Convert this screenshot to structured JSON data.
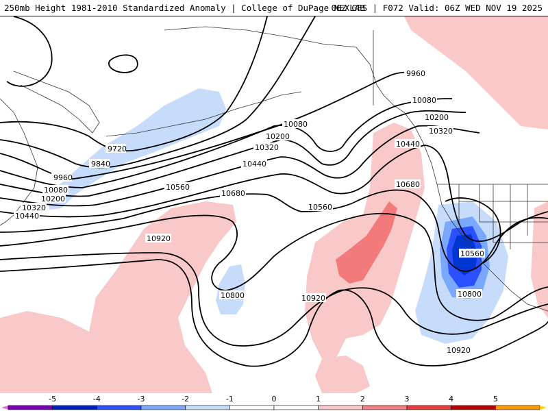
{
  "header": {
    "title": "250mb Height 1981-2010 Standardized Anomaly | College of DuPage NEXLAB",
    "run_info": "06Z GFS | F072 Valid: 06Z WED NOV 19 2025"
  },
  "contour_labels": {
    "l9720": "9720",
    "l9840": "9840",
    "l9960a": "9960",
    "l9960b": "9960",
    "l10080a": "10080",
    "l10080b": "10080",
    "l10080c": "10080",
    "l10200a": "10200",
    "l10200b": "10200",
    "l10200c": "10200",
    "l10320a": "10320",
    "l10320b": "10320",
    "l10320c": "10320",
    "l10440a": "10440",
    "l10440b": "10440",
    "l10440c": "10440",
    "l10560a": "10560",
    "l10560b": "10560",
    "l10560c": "10560",
    "l10680a": "10680",
    "l10680b": "10680",
    "l10800a": "10800",
    "l10800b": "10800",
    "l10920a": "10920",
    "l10920b": "10920",
    "l10920c": "10920"
  },
  "colorbar": {
    "ticks": [
      "-5",
      "-4",
      "-3",
      "-2",
      "-1",
      "0",
      "1",
      "2",
      "3",
      "4",
      "5"
    ],
    "colors": [
      "#7a00b8",
      "#0020c0",
      "#2a50ff",
      "#7aa8ff",
      "#c6dcfa",
      "#ffffff",
      "#ffffff",
      "#f9c8c8",
      "#f08080",
      "#e83a3a",
      "#b80000",
      "#ff9a00"
    ],
    "low_arrow_color": "#e070e0",
    "high_arrow_color": "#ffd000"
  },
  "map_colors": {
    "pos1": "#f9c8c8",
    "pos2": "#f27a7a",
    "neg1": "#c6dcfa",
    "neg2": "#7aa8ff",
    "neg3": "#2a50ff",
    "neg4": "#0036d0"
  }
}
